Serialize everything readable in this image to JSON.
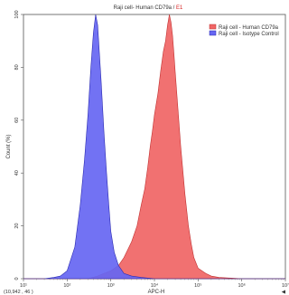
{
  "chart_data": {
    "type": "area",
    "title": {
      "main": "Raji cell- Human CD79a",
      "sep": " / ",
      "accent": "E1",
      "accent_color": "#d62020"
    },
    "xlabel": "APC-H",
    "ylabel": "Count (%)",
    "x_scale": "log",
    "xlim": [
      10,
      10000000
    ],
    "ylim": [
      0,
      100
    ],
    "grid": false,
    "legend_position": "top-right",
    "x_ticks": [
      {
        "value": 10,
        "label": "10¹"
      },
      {
        "value": 100,
        "label": "10²"
      },
      {
        "value": 1000,
        "label": "10³"
      },
      {
        "value": 10000,
        "label": "10⁴"
      },
      {
        "value": 100000,
        "label": "10⁵"
      },
      {
        "value": 1000000,
        "label": "10⁶"
      },
      {
        "value": 10000000,
        "label": "10⁷"
      }
    ],
    "y_ticks": [
      {
        "value": 0,
        "label": "0"
      },
      {
        "value": 20,
        "label": "20"
      },
      {
        "value": 40,
        "label": "40"
      },
      {
        "value": 60,
        "label": "60"
      },
      {
        "value": 80,
        "label": "80"
      },
      {
        "value": 100,
        "label": "100"
      }
    ],
    "cursor_readout": "(10,942 , 46 )",
    "series": [
      {
        "name": "Raji cell - Human CD79a",
        "color": "#f06565",
        "stroke": "#c03030",
        "x": [
          10,
          100,
          300,
          500,
          700,
          1000,
          1500,
          2000,
          3000,
          4000,
          5000,
          6000,
          7000,
          8000,
          9000,
          10000,
          12000,
          14000,
          16000,
          18000,
          20000,
          21000,
          22000,
          24000,
          26000,
          28000,
          30000,
          35000,
          40000,
          50000,
          60000,
          70000,
          80000,
          100000,
          150000,
          200000,
          300000,
          1000000,
          10000000
        ],
        "y": [
          0,
          0,
          0,
          1,
          2,
          3,
          5,
          8,
          14,
          20,
          28,
          34,
          42,
          50,
          56,
          62,
          70,
          79,
          86,
          90,
          96,
          98,
          100,
          97,
          92,
          85,
          78,
          63,
          50,
          32,
          20,
          13,
          8,
          4,
          2,
          1,
          0.5,
          0,
          0
        ]
      },
      {
        "name": "Raji cell - Isotype Control",
        "color": "#6666f2",
        "stroke": "#2a2ab0",
        "x": [
          10,
          30,
          50,
          70,
          100,
          150,
          200,
          250,
          300,
          350,
          400,
          450,
          500,
          600,
          700,
          800,
          900,
          1000,
          1200,
          1500,
          2000,
          3000,
          5000,
          10000,
          10000000
        ],
        "y": [
          0,
          0,
          0.5,
          1,
          3,
          12,
          28,
          45,
          62,
          80,
          93,
          100,
          96,
          75,
          55,
          40,
          28,
          18,
          10,
          5,
          2,
          1,
          0.5,
          0,
          0
        ]
      }
    ]
  }
}
